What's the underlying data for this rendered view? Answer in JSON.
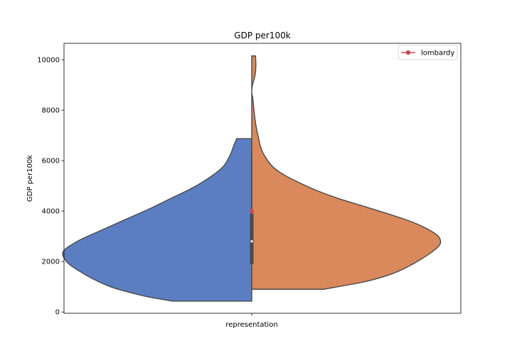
{
  "chart_data": {
    "type": "violin",
    "title": "GDP per100k",
    "xlabel": "",
    "ylabel": "GDP per100k",
    "categories": [
      "representation"
    ],
    "ylim": [
      -50,
      10650
    ],
    "yticks": [
      0,
      2000,
      4000,
      6000,
      8000,
      10000
    ],
    "ytick_labels": [
      "0",
      "2000",
      "4000",
      "6000",
      "8000",
      "10000"
    ],
    "xtick_labels": [
      "representation"
    ],
    "grid": false,
    "split": true,
    "halves": [
      {
        "side": "left",
        "color": "#5b7ec2",
        "y_min": 430,
        "y_max": 6870,
        "profile": [
          [
            430,
            0.42
          ],
          [
            600,
            0.55
          ],
          [
            800,
            0.66
          ],
          [
            1000,
            0.75
          ],
          [
            1300,
            0.84
          ],
          [
            1600,
            0.91
          ],
          [
            1900,
            0.97
          ],
          [
            2200,
            1.0
          ],
          [
            2400,
            1.0
          ],
          [
            2600,
            0.97
          ],
          [
            2900,
            0.9
          ],
          [
            3300,
            0.78
          ],
          [
            3700,
            0.66
          ],
          [
            4100,
            0.54
          ],
          [
            4500,
            0.43
          ],
          [
            4900,
            0.32
          ],
          [
            5300,
            0.23
          ],
          [
            5700,
            0.16
          ],
          [
            6000,
            0.13
          ],
          [
            6300,
            0.11
          ],
          [
            6600,
            0.095
          ],
          [
            6870,
            0.08
          ]
        ]
      },
      {
        "side": "right",
        "color": "#d9895c",
        "y_min": 900,
        "y_max": 10150,
        "profile": [
          [
            900,
            0.38
          ],
          [
            1200,
            0.6
          ],
          [
            1500,
            0.74
          ],
          [
            1800,
            0.83
          ],
          [
            2100,
            0.9
          ],
          [
            2400,
            0.96
          ],
          [
            2700,
            1.0
          ],
          [
            3000,
            0.99
          ],
          [
            3300,
            0.93
          ],
          [
            3600,
            0.84
          ],
          [
            3900,
            0.72
          ],
          [
            4200,
            0.59
          ],
          [
            4500,
            0.46
          ],
          [
            4800,
            0.35
          ],
          [
            5100,
            0.26
          ],
          [
            5400,
            0.18
          ],
          [
            5700,
            0.12
          ],
          [
            6000,
            0.085
          ],
          [
            6300,
            0.06
          ],
          [
            6600,
            0.045
          ],
          [
            7000,
            0.033
          ],
          [
            7500,
            0.02
          ],
          [
            8000,
            0.012
          ],
          [
            8500,
            0.005
          ],
          [
            8700,
            0.0
          ],
          [
            9000,
            0.004
          ],
          [
            9400,
            0.018
          ],
          [
            9800,
            0.022
          ],
          [
            10150,
            0.02
          ]
        ]
      }
    ],
    "inner_box": {
      "q1": 1900,
      "q3": 3900,
      "median": 2800,
      "whisker_low": 1900,
      "whisker_high": 6200
    },
    "highlight_point": {
      "label": "lombardy",
      "value": 4000,
      "color": "#c44e52"
    },
    "legend": {
      "entries": [
        "lombardy"
      ],
      "position": "upper right"
    }
  }
}
